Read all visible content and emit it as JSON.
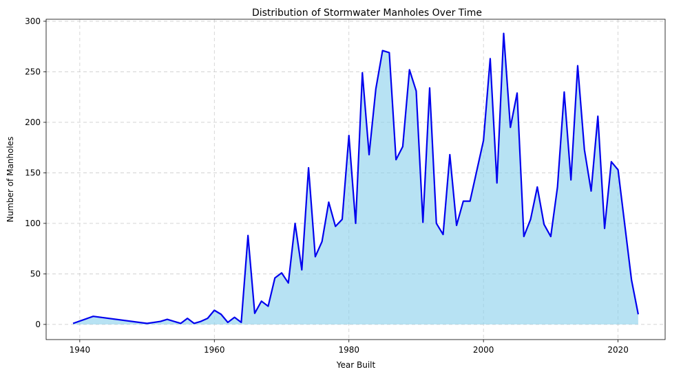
{
  "chart_data": {
    "type": "area",
    "title": "Distribution of Stormwater Manholes Over Time",
    "xlabel": "Year Built",
    "ylabel": "Number of Manholes",
    "xlim": [
      1935,
      2027
    ],
    "ylim": [
      -15,
      302
    ],
    "xticks": [
      1940,
      1960,
      1980,
      2000,
      2020
    ],
    "yticks": [
      0,
      50,
      100,
      150,
      200,
      250,
      300
    ],
    "grid": true,
    "colors": {
      "line": "#0000ee",
      "fill": "#87ceeb"
    },
    "series": [
      {
        "x": [
          1939,
          1942,
          1950,
          1952,
          1953,
          1955,
          1956,
          1957,
          1958,
          1959,
          1960,
          1961,
          1962,
          1963,
          1964,
          1965,
          1966,
          1967,
          1968,
          1969,
          1970,
          1971,
          1972,
          1973,
          1974,
          1975,
          1976,
          1977,
          1978,
          1979,
          1980,
          1981,
          1982,
          1983,
          1984,
          1985,
          1986,
          1987,
          1988,
          1989,
          1990,
          1991,
          1992,
          1993,
          1994,
          1995,
          1996,
          1997,
          1998,
          2000,
          2001,
          2002,
          2003,
          2004,
          2005,
          2006,
          2007,
          2008,
          2009,
          2010,
          2011,
          2012,
          2013,
          2014,
          2015,
          2016,
          2017,
          2018,
          2019,
          2020,
          2022,
          2023
        ],
        "y": [
          1,
          8,
          1,
          3,
          5,
          1,
          6,
          1,
          3,
          6,
          14,
          10,
          2,
          7,
          2,
          88,
          11,
          23,
          18,
          46,
          51,
          41,
          100,
          54,
          155,
          67,
          82,
          121,
          97,
          104,
          187,
          100,
          249,
          168,
          233,
          271,
          269,
          163,
          176,
          252,
          231,
          101,
          234,
          100,
          89,
          168,
          98,
          122,
          122,
          182,
          263,
          140,
          288,
          195,
          229,
          87,
          104,
          136,
          99,
          87,
          136,
          230,
          143,
          256,
          173,
          132,
          206,
          95,
          161,
          153,
          44,
          10
        ]
      }
    ]
  }
}
